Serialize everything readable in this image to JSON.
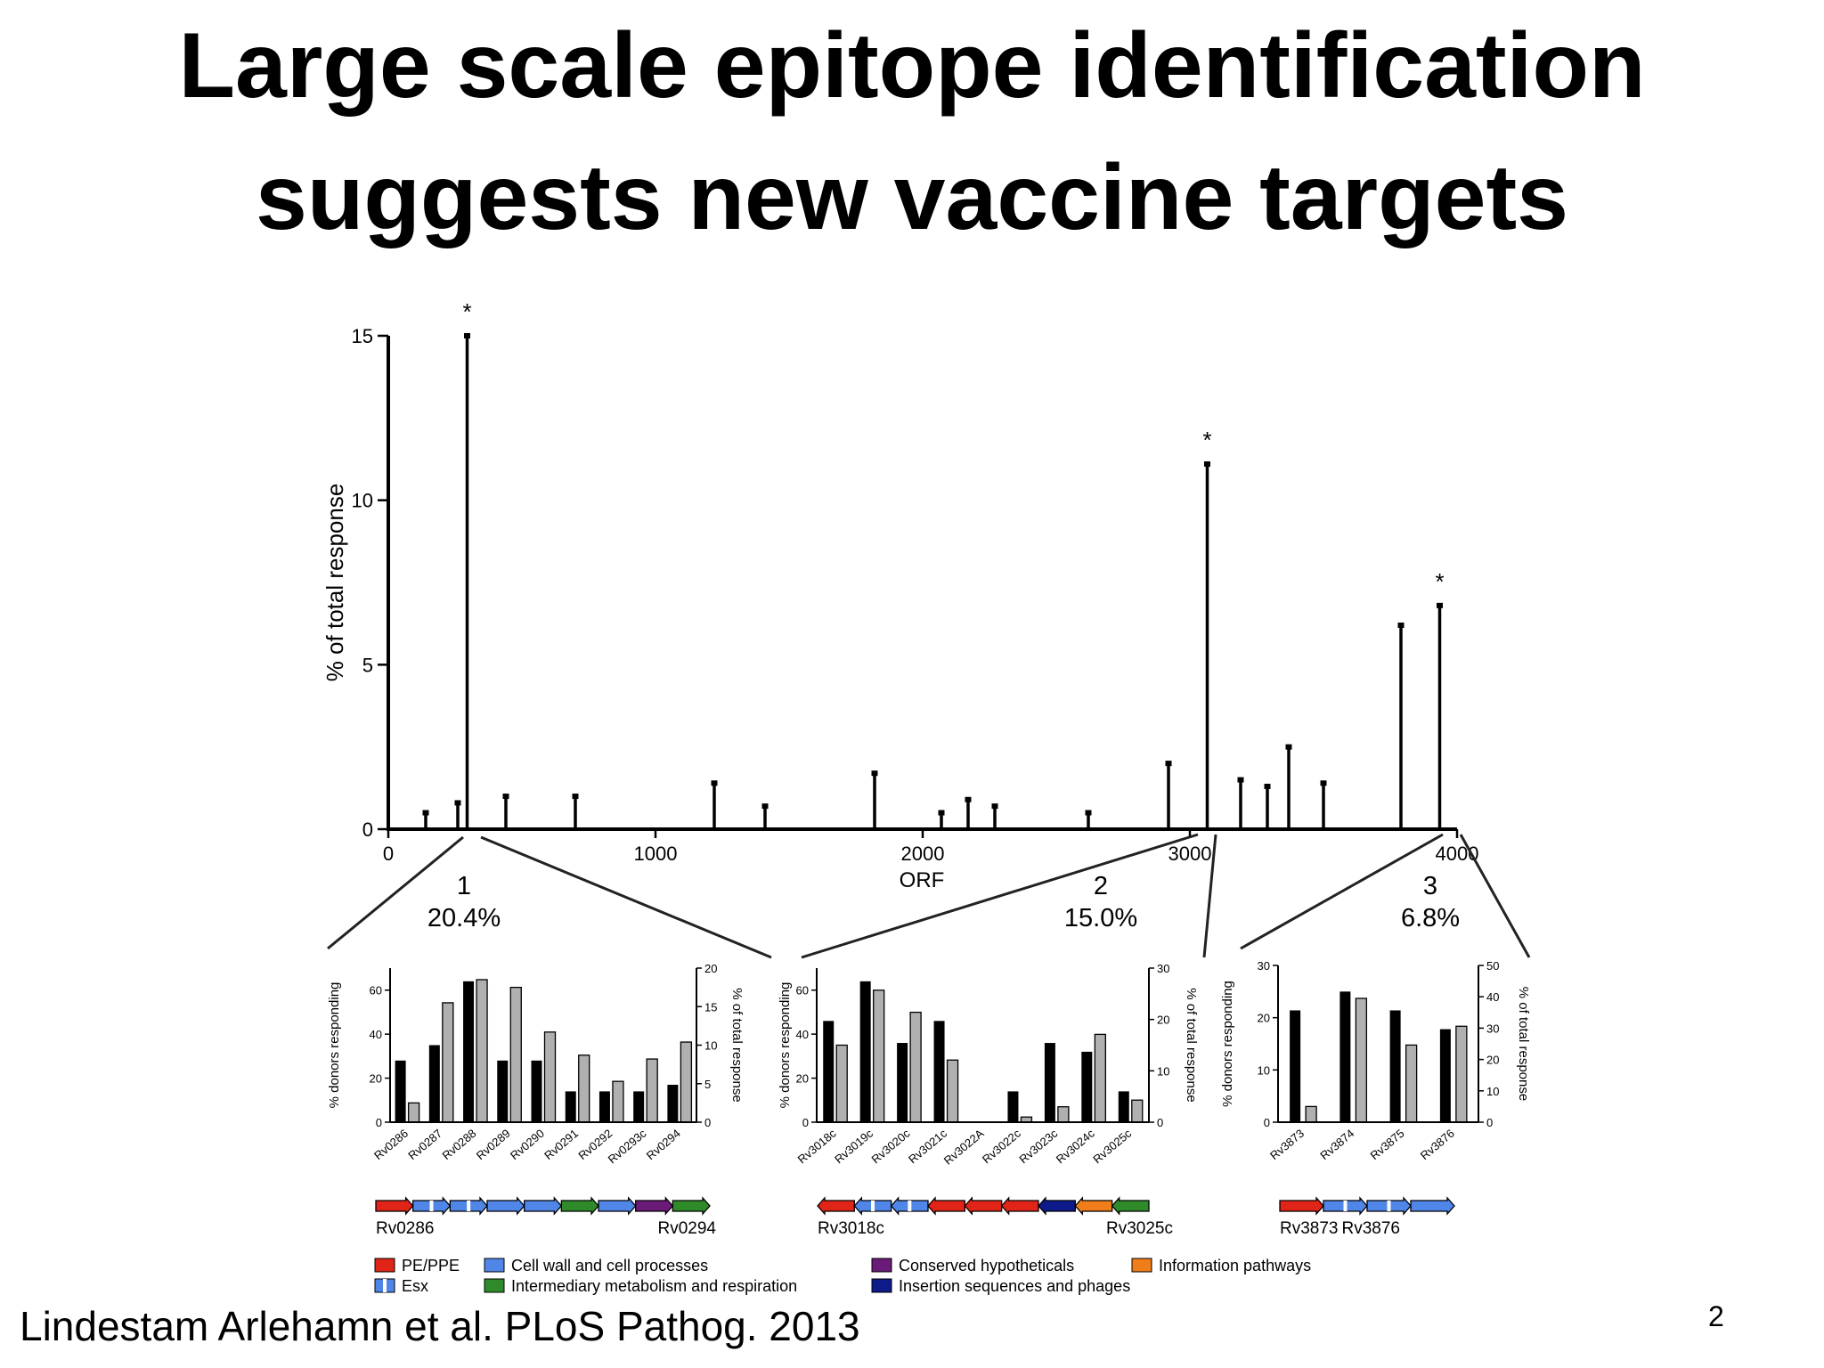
{
  "slide": {
    "title_line1": "Large scale epitope identification",
    "title_line2": "suggests new vaccine targets",
    "citation": "Lindestam Arlehamn et al. PLoS Pathog. 2013",
    "page_number": "2"
  },
  "colors": {
    "pe_ppe": "#e02418",
    "esx": "#4f86e8",
    "cell_wall": "#4f86e8",
    "intermediary": "#2f8a2a",
    "conserved": "#6a1b78",
    "insertion": "#0c1a8a",
    "information": "#ef7d1a",
    "bar_donors": "#000000",
    "bar_response": "#b0b0b0"
  },
  "chart_data": [
    {
      "type": "line",
      "xlabel": "ORF",
      "ylabel": "% of total response",
      "xlim": [
        0,
        4000
      ],
      "ylim": [
        0,
        15
      ],
      "xticks": [
        0,
        1000,
        2000,
        3000,
        4000
      ],
      "yticks": [
        0,
        5,
        10,
        15
      ],
      "peaks": [
        {
          "x": 140,
          "y": 0.5
        },
        {
          "x": 260,
          "y": 0.8
        },
        {
          "x": 295,
          "y": 15
        },
        {
          "x": 440,
          "y": 1.0
        },
        {
          "x": 700,
          "y": 1.0
        },
        {
          "x": 1220,
          "y": 1.4
        },
        {
          "x": 1410,
          "y": 0.7
        },
        {
          "x": 1820,
          "y": 1.7
        },
        {
          "x": 2070,
          "y": 0.5
        },
        {
          "x": 2170,
          "y": 0.9
        },
        {
          "x": 2270,
          "y": 0.7
        },
        {
          "x": 2620,
          "y": 0.5
        },
        {
          "x": 2920,
          "y": 2.0
        },
        {
          "x": 3065,
          "y": 11.1
        },
        {
          "x": 3190,
          "y": 1.5
        },
        {
          "x": 3290,
          "y": 1.3
        },
        {
          "x": 3370,
          "y": 2.5
        },
        {
          "x": 3500,
          "y": 1.4
        },
        {
          "x": 3790,
          "y": 6.2
        },
        {
          "x": 3935,
          "y": 6.8
        }
      ],
      "starred_peaks": [
        295,
        3065,
        3935
      ],
      "regions": [
        {
          "label": "1",
          "percent": "20.4%"
        },
        {
          "label": "2",
          "percent": "15.0%"
        },
        {
          "label": "3",
          "percent": "6.8%"
        }
      ]
    },
    {
      "type": "bar",
      "ylabel": "% donors responding",
      "y2label": "% of total response",
      "ylim": [
        0,
        70
      ],
      "yticks": [
        0,
        20,
        40,
        60
      ],
      "y2lim": [
        0,
        20
      ],
      "y2ticks": [
        0,
        5,
        10,
        15,
        20
      ],
      "categories": [
        "Rv0286",
        "Rv0287",
        "Rv0288",
        "Rv0289",
        "Rv0290",
        "Rv0291",
        "Rv0292",
        "Rv0293c",
        "Rv0294"
      ],
      "series": [
        {
          "values": [
            28,
            35,
            64,
            28,
            28,
            14,
            14,
            14,
            17
          ]
        },
        {
          "values": [
            2.5,
            15.5,
            18.5,
            17.5,
            11.7,
            8.7,
            5.3,
            8.2,
            10.4
          ]
        }
      ],
      "operon": {
        "start_label": "Rv0286",
        "end_label": "Rv0294",
        "genes": [
          "pe_ppe",
          "esx",
          "esx",
          "cell_wall",
          "cell_wall",
          "intermediary",
          "cell_wall",
          "conserved",
          "intermediary"
        ]
      }
    },
    {
      "type": "bar",
      "ylabel": "% donors responding",
      "y2label": "% of total response",
      "ylim": [
        0,
        70
      ],
      "yticks": [
        0,
        20,
        40,
        60
      ],
      "y2lim": [
        0,
        30
      ],
      "y2ticks": [
        0,
        10,
        20,
        30
      ],
      "categories": [
        "Rv3018c",
        "Rv3019c",
        "Rv3020c",
        "Rv3021c",
        "Rv3022A",
        "Rv3022c",
        "Rv3023c",
        "Rv3024c",
        "Rv3025c"
      ],
      "series": [
        {
          "values": [
            46,
            64,
            36,
            46,
            0,
            14,
            36,
            32,
            14
          ]
        },
        {
          "values": [
            15,
            25.7,
            21.4,
            12.1,
            0,
            1,
            3,
            17.1,
            4.3
          ]
        }
      ],
      "operon": {
        "start_label": "Rv3018c",
        "end_label": "Rv3025c",
        "genes": [
          "pe_ppe",
          "esx",
          "esx",
          "pe_ppe",
          "pe_ppe",
          "pe_ppe",
          "insertion",
          "information",
          "intermediary"
        ]
      }
    },
    {
      "type": "bar",
      "ylabel": "% donors responding",
      "y2label": "% of total response",
      "ylim": [
        0,
        30
      ],
      "yticks": [
        0,
        10,
        20,
        30
      ],
      "y2lim": [
        0,
        50
      ],
      "y2ticks": [
        0,
        10,
        20,
        30,
        40,
        50
      ],
      "categories": [
        "Rv3873",
        "Rv3874",
        "Rv3875",
        "Rv3876"
      ],
      "series": [
        {
          "values": [
            21.4,
            25,
            21.4,
            17.8
          ]
        },
        {
          "values": [
            5,
            39.5,
            24.6,
            30.6
          ]
        }
      ],
      "operon": {
        "start_label": "Rv3873",
        "end_label": "Rv3876",
        "genes": [
          "pe_ppe",
          "esx",
          "esx",
          "cell_wall"
        ]
      }
    }
  ],
  "legend": [
    {
      "key": "pe_ppe",
      "label": "PE/PPE"
    },
    {
      "key": "esx",
      "label": "Esx"
    },
    {
      "key": "cell_wall",
      "label": "Cell wall and cell processes"
    },
    {
      "key": "intermediary",
      "label": "Intermediary metabolism and respiration"
    },
    {
      "key": "conserved",
      "label": "Conserved hypotheticals"
    },
    {
      "key": "insertion",
      "label": "Insertion sequences and phages"
    },
    {
      "key": "information",
      "label": "Information pathways"
    }
  ]
}
